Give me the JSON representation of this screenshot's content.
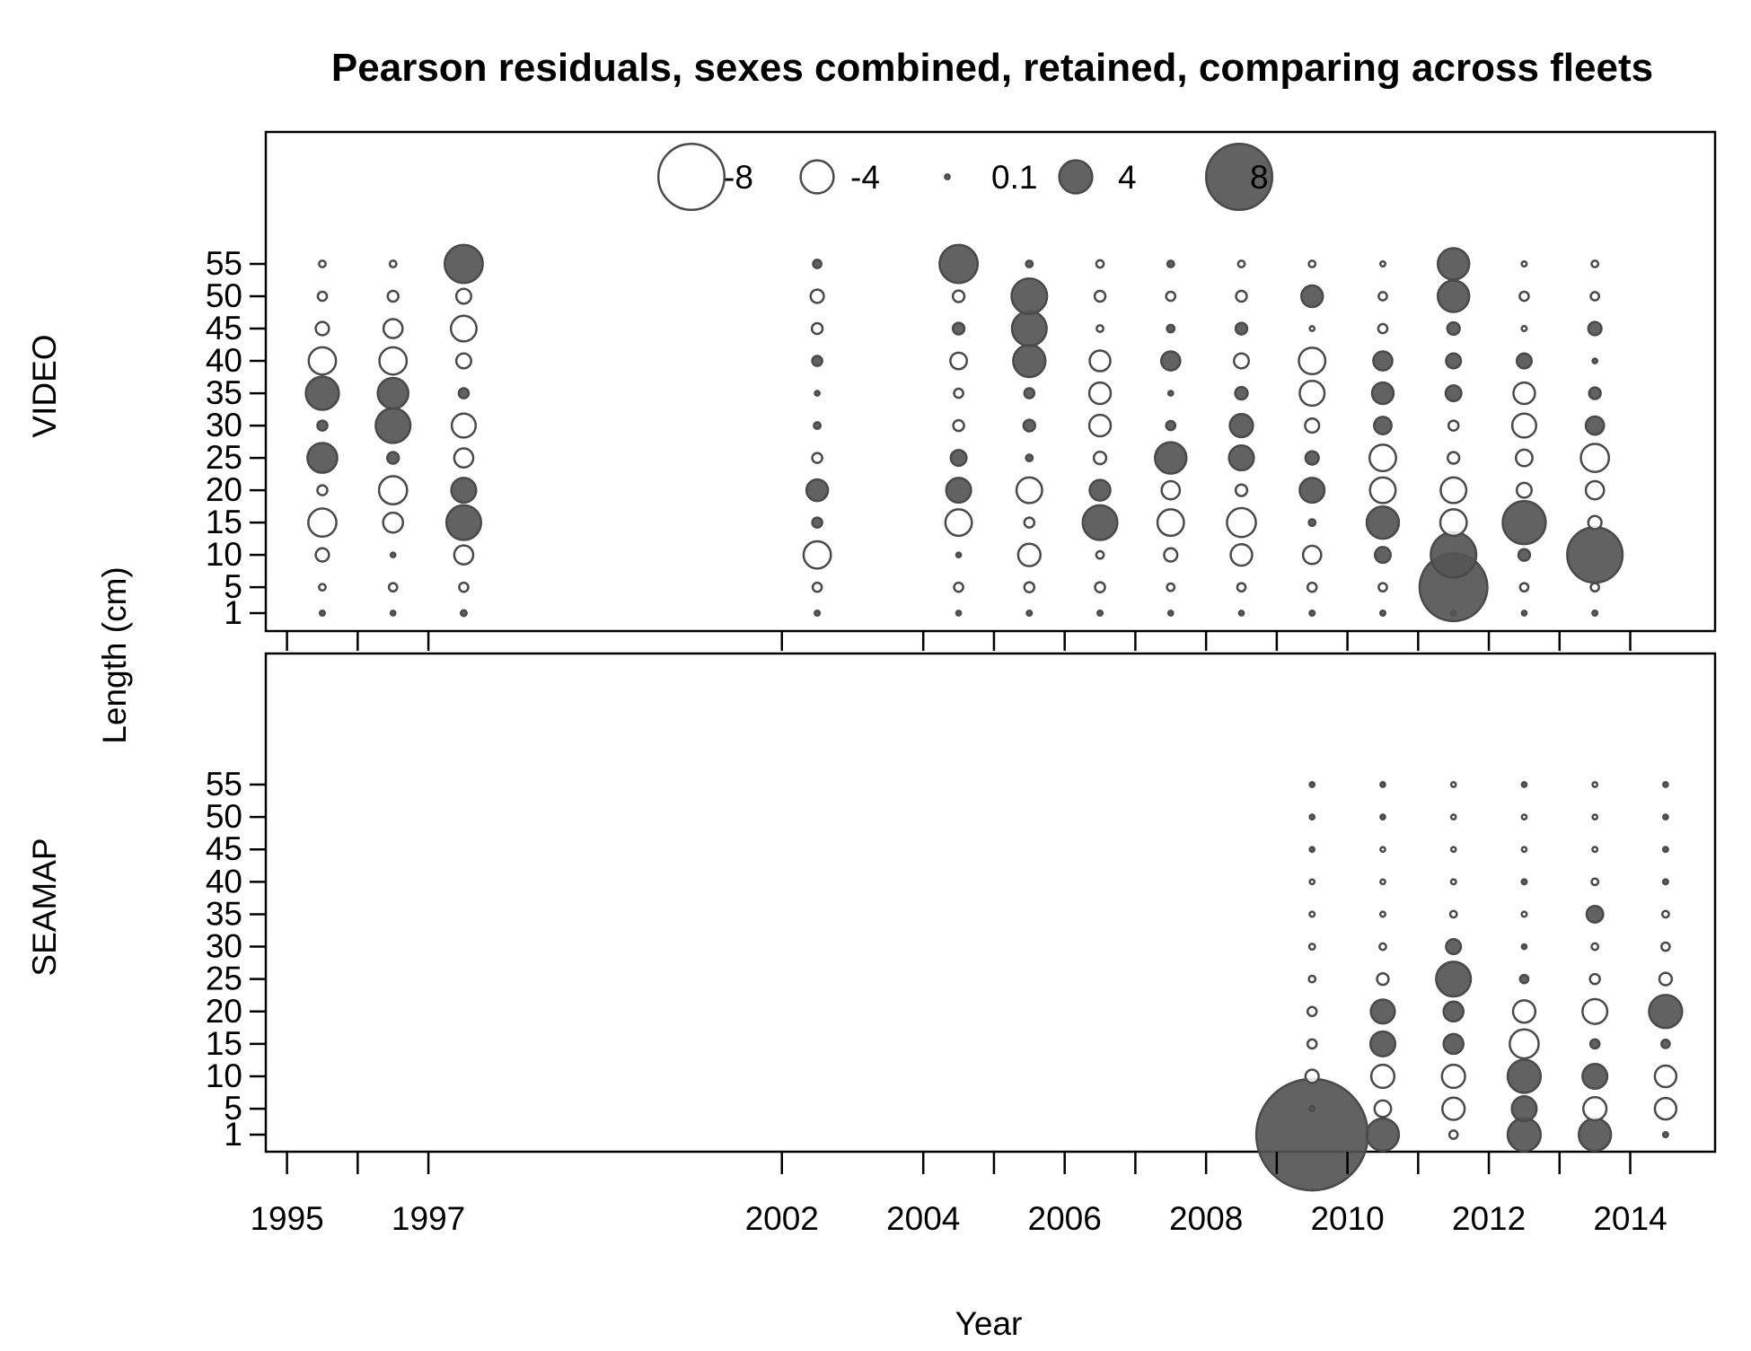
{
  "chart_data": {
    "type": "bubble",
    "title": "Pearson residuals, sexes combined, retained, comparing across fleets",
    "xlabel": "Year",
    "ylabel": "Length (cm)",
    "x_ticks": [
      1995,
      1997,
      2002,
      2004,
      2006,
      2008,
      2010,
      2012,
      2014
    ],
    "x_minor_ticks": [
      1995,
      1996,
      1997,
      2002,
      2004,
      2005,
      2006,
      2007,
      2008,
      2009,
      2010,
      2011,
      2012,
      2013,
      2014
    ],
    "xlim": [
      1994.7,
      2015.2
    ],
    "y_ticks": [
      1,
      5,
      10,
      15,
      20,
      25,
      30,
      35,
      40,
      45,
      50,
      55
    ],
    "legend": {
      "values": [
        -8,
        -4,
        0.1,
        4,
        8
      ],
      "labels": [
        "-8",
        "-4",
        "0.1",
        "4",
        "8"
      ],
      "placement": "top-center of upper panel"
    },
    "colors": {
      "positive_fill": "#555555",
      "negative_fill": "#ffffff",
      "stroke": "#4a4a4a"
    },
    "lengths": [
      1,
      5,
      10,
      15,
      20,
      25,
      30,
      35,
      40,
      45,
      50,
      55
    ],
    "panels": [
      {
        "name": "VIDEO",
        "years": [
          1995.5,
          1996.5,
          1997.5,
          2002.5,
          2004.5,
          2005.5,
          2006.5,
          2007.5,
          2008.5,
          2009.5,
          2010.5,
          2011.5,
          2012.5,
          2013.5
        ],
        "residuals": [
          [
            0.6,
            -0.8,
            -1.6,
            -3.4,
            -1.2,
            3.6,
            1.2,
            4.0,
            -3.3,
            -1.6,
            -1.1,
            -0.8
          ],
          [
            0.5,
            -1.0,
            0.5,
            -2.4,
            -3.4,
            1.4,
            4.2,
            3.7,
            -3.3,
            -2.3,
            -1.3,
            -0.8
          ],
          [
            0.7,
            -1.1,
            -2.3,
            4.2,
            3.0,
            -2.3,
            -2.9,
            1.2,
            -1.8,
            -3.1,
            -1.8,
            4.6
          ],
          [
            0.6,
            -1.1,
            -3.3,
            1.2,
            2.6,
            -1.2,
            0.8,
            0.4,
            1.2,
            -1.3,
            -1.6,
            1.0
          ],
          [
            0.5,
            -1.1,
            0.5,
            -3.2,
            3.0,
            1.9,
            -1.3,
            -1.1,
            -2.0,
            1.4,
            -1.4,
            4.6
          ],
          [
            0.6,
            -1.2,
            -2.7,
            -1.2,
            -3.1,
            0.8,
            1.4,
            1.2,
            3.9,
            4.2,
            4.3,
            0.8
          ],
          [
            0.6,
            -1.2,
            -0.9,
            4.2,
            2.5,
            -1.5,
            -2.6,
            -2.6,
            -2.5,
            -0.8,
            -1.3,
            -0.9
          ],
          [
            0.5,
            -0.9,
            -1.6,
            -3.2,
            -2.2,
            3.8,
            1.1,
            0.4,
            2.3,
            0.9,
            -1.1,
            0.8
          ],
          [
            0.5,
            -1.0,
            -2.6,
            -3.5,
            -1.4,
            3.0,
            2.8,
            1.5,
            -1.8,
            1.4,
            -1.3,
            -0.8
          ],
          [
            0.6,
            -1.1,
            -2.2,
            0.8,
            3.0,
            1.6,
            -1.7,
            -3.0,
            -3.2,
            -0.5,
            2.6,
            -0.8
          ],
          [
            0.6,
            -1.0,
            1.9,
            3.9,
            -3.1,
            -3.2,
            2.1,
            2.6,
            2.3,
            -1.1,
            -1.0,
            -0.6
          ],
          [
            0.6,
            8.2,
            5.5,
            -3.2,
            -3.1,
            -1.4,
            -1.2,
            1.9,
            1.8,
            1.5,
            3.8,
            3.8
          ],
          [
            0.5,
            -1.0,
            1.4,
            5.2,
            -1.8,
            -2.0,
            -2.9,
            -2.6,
            1.8,
            -0.6,
            -1.1,
            -0.6
          ],
          [
            0.6,
            -1.0,
            6.7,
            -1.6,
            -2.2,
            -3.4,
            2.2,
            1.4,
            0.4,
            1.6,
            -1.0,
            -0.8
          ]
        ]
      },
      {
        "name": "SEAMAP",
        "years": [
          2009.5,
          2010.5,
          2011.5,
          2012.5,
          2013.5,
          2014.5
        ],
        "residuals": [
          [
            13.5,
            0.6,
            -1.6,
            -1.1,
            -1.1,
            -0.8,
            -0.7,
            -0.6,
            -0.5,
            0.3,
            0.3,
            0.3
          ],
          [
            3.9,
            -2.0,
            -2.8,
            3.0,
            2.9,
            -1.4,
            -0.8,
            -0.6,
            -0.5,
            -0.5,
            0.3,
            0.3
          ],
          [
            -1.0,
            -2.7,
            -2.8,
            2.4,
            2.4,
            4.2,
            1.8,
            -0.8,
            -0.6,
            -0.5,
            -0.5,
            -0.4
          ],
          [
            4.0,
            3.0,
            4.0,
            -3.5,
            -2.7,
            1.0,
            0.3,
            -0.6,
            0.6,
            -0.5,
            -0.4,
            0.3
          ],
          [
            3.9,
            -2.8,
            3.0,
            1.1,
            -3.0,
            -1.2,
            -0.8,
            2.0,
            -0.8,
            -0.6,
            -0.5,
            -0.4
          ],
          [
            0.6,
            -2.6,
            -2.6,
            1.0,
            4.0,
            -1.5,
            -1.0,
            -0.8,
            0.6,
            0.6,
            0.4,
            0.3
          ]
        ]
      }
    ]
  }
}
